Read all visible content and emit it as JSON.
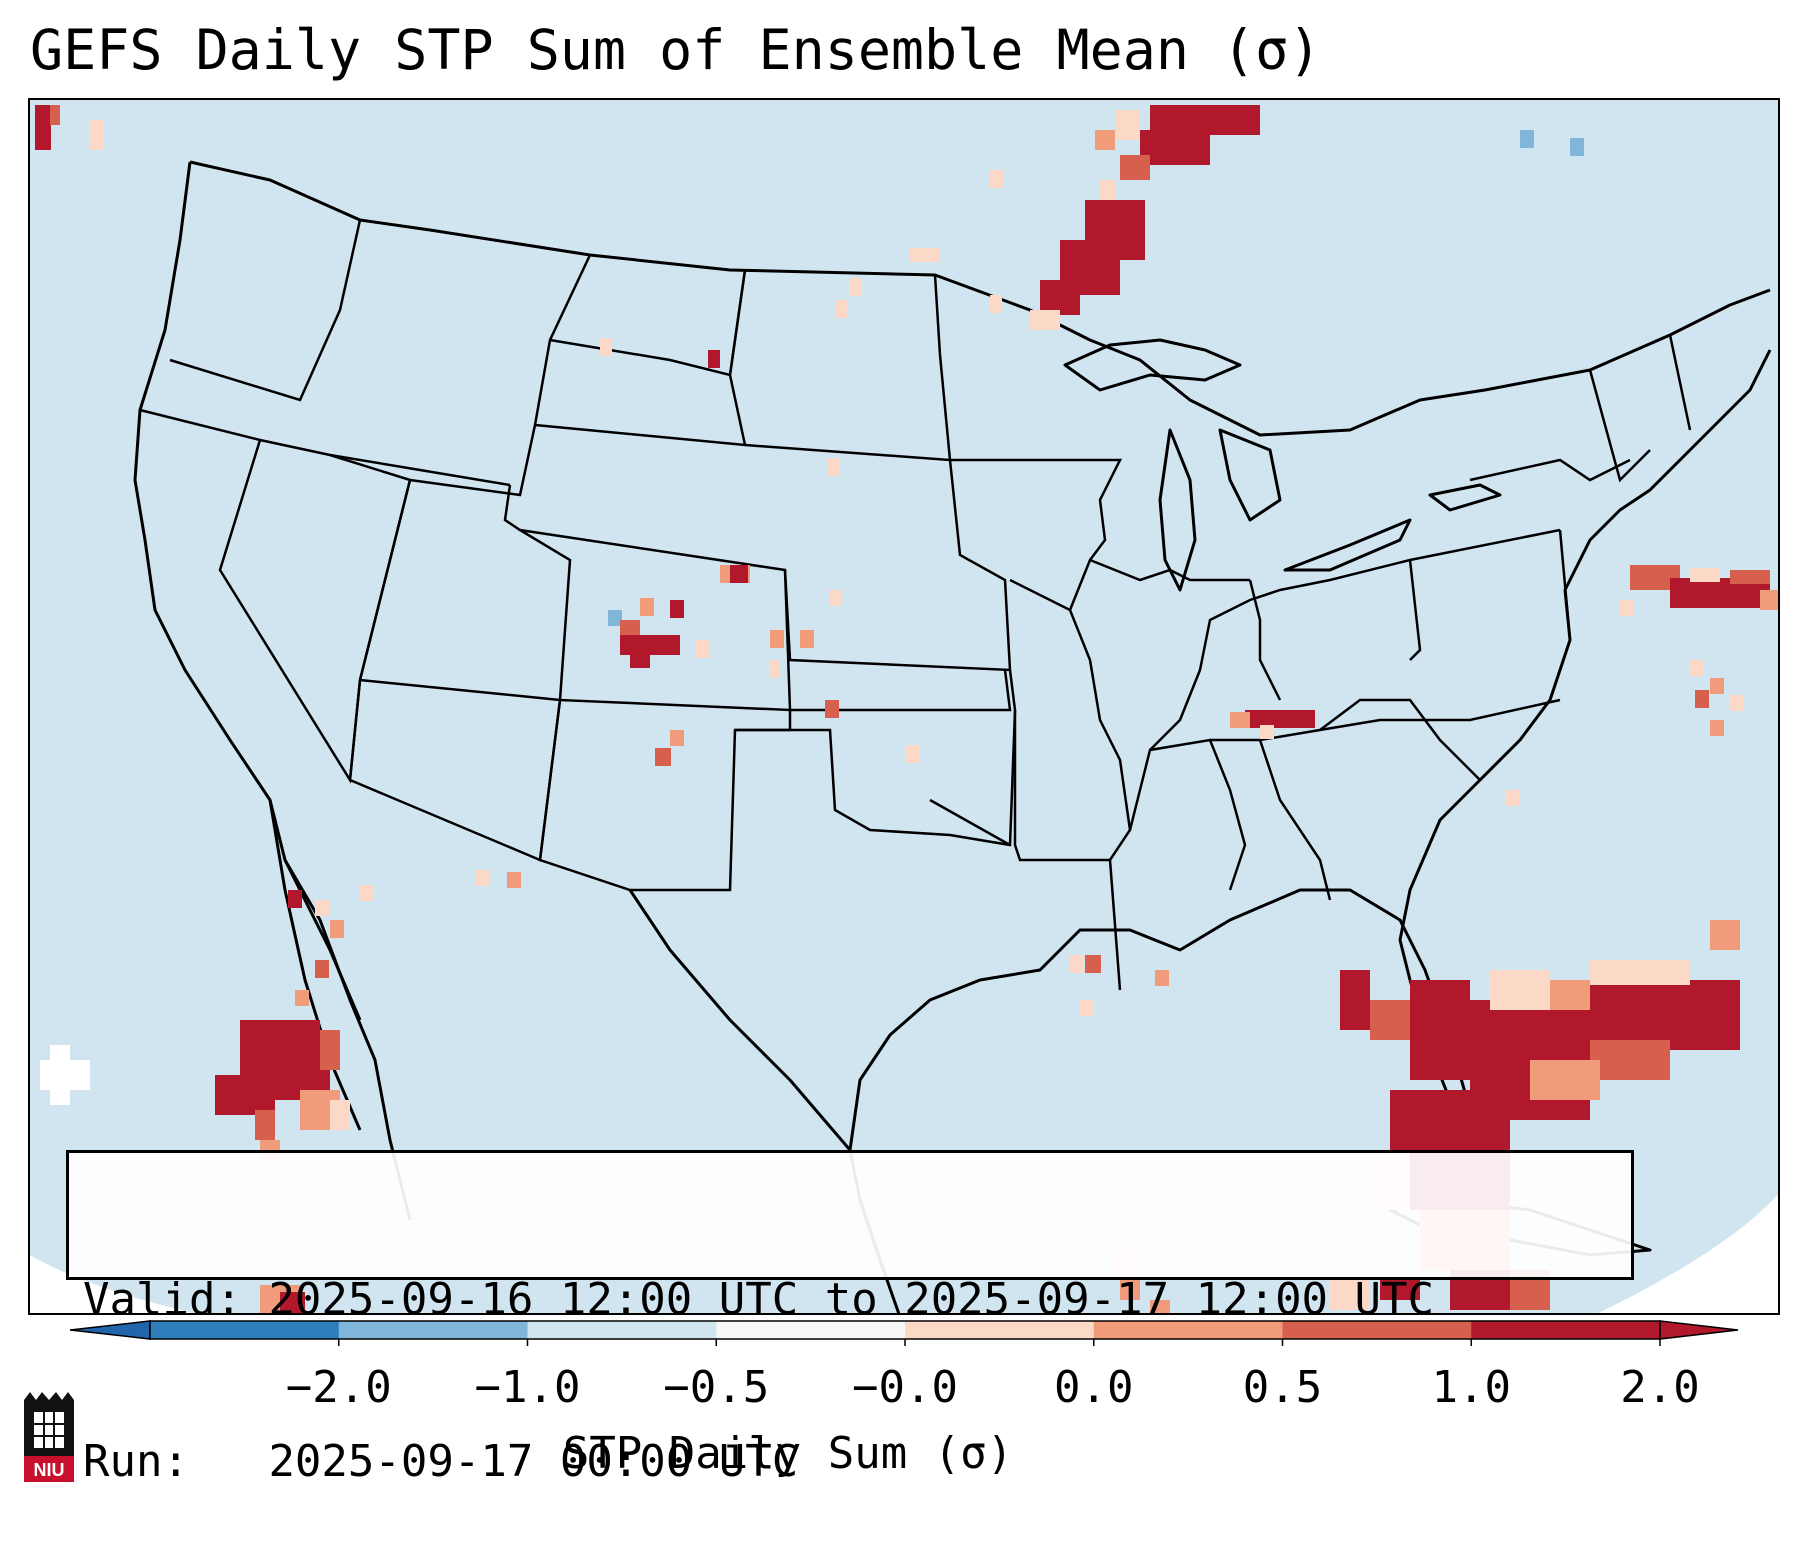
{
  "title": "GEFS Daily STP Sum of Ensemble Mean (σ)",
  "info": {
    "valid_label": "Valid: ",
    "valid_value": "2025-09-16 12:00 UTC to 2025-09-17 12:00 UTC",
    "run_label": "Run:   ",
    "run_value": "2025-09-17 00:00 UTC"
  },
  "colorbar": {
    "label": "STP Daily Sum (σ)",
    "ticks": [
      "−2.0",
      "−1.0",
      "−0.5",
      "−0.0",
      "0.0",
      "0.5",
      "1.0",
      "2.0"
    ],
    "colors": [
      "#2f7ebc",
      "#7fb6d9",
      "#d1e5f0",
      "#f7f7f7",
      "#fcd9c6",
      "#f09c7b",
      "#d6604d",
      "#b2182b"
    ],
    "extend_low_color": "#2166ac",
    "extend_high_color": "#b2182b"
  },
  "map": {
    "background_color": "#d1e5f0",
    "outline_color": "#000000"
  },
  "logo": {
    "name": "niu-logo",
    "text": "NIU"
  }
}
